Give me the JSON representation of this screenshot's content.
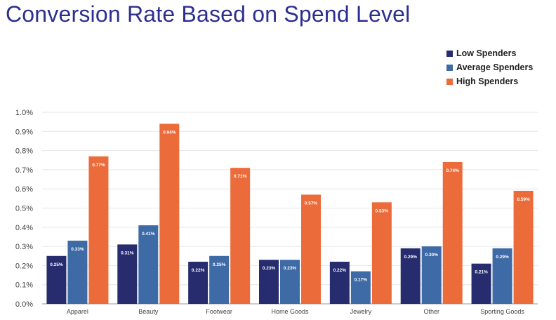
{
  "chart_data": {
    "type": "bar",
    "title": "Conversion Rate Based on Spend Level",
    "xlabel": "",
    "ylabel": "",
    "ylim": [
      0,
      1.0
    ],
    "yticks": [
      "0.0%",
      "0.1%",
      "0.2%",
      "0.3%",
      "0.4%",
      "0.5%",
      "0.6%",
      "0.7%",
      "0.8%",
      "0.9%",
      "1.0%"
    ],
    "categories": [
      "Apparel",
      "Beauty",
      "Footwear",
      "Home Goods",
      "Jewelry",
      "Other",
      "Sporting Goods"
    ],
    "series": [
      {
        "name": "Low Spenders",
        "color": "#262c6e",
        "values": [
          0.25,
          0.31,
          0.22,
          0.23,
          0.22,
          0.29,
          0.21
        ],
        "labels": [
          "0.25%",
          "0.31%",
          "0.22%",
          "0.23%",
          "0.22%",
          "0.29%",
          "0.21%"
        ]
      },
      {
        "name": "Average Spenders",
        "color": "#3e6aa6",
        "values": [
          0.33,
          0.41,
          0.25,
          0.23,
          0.17,
          0.3,
          0.29
        ],
        "labels": [
          "0.33%",
          "0.41%",
          "0.25%",
          "0.23%",
          "0.17%",
          "0.30%",
          "0.29%"
        ]
      },
      {
        "name": "High Spenders",
        "color": "#ec6b3a",
        "values": [
          0.77,
          0.94,
          0.71,
          0.57,
          0.53,
          0.74,
          0.59
        ],
        "labels": [
          "0.77%",
          "0.94%",
          "0.71%",
          "0.57%",
          "0.53%",
          "0.74%",
          "0.59%"
        ]
      }
    ],
    "grid": true,
    "legend_position": "top-right"
  }
}
